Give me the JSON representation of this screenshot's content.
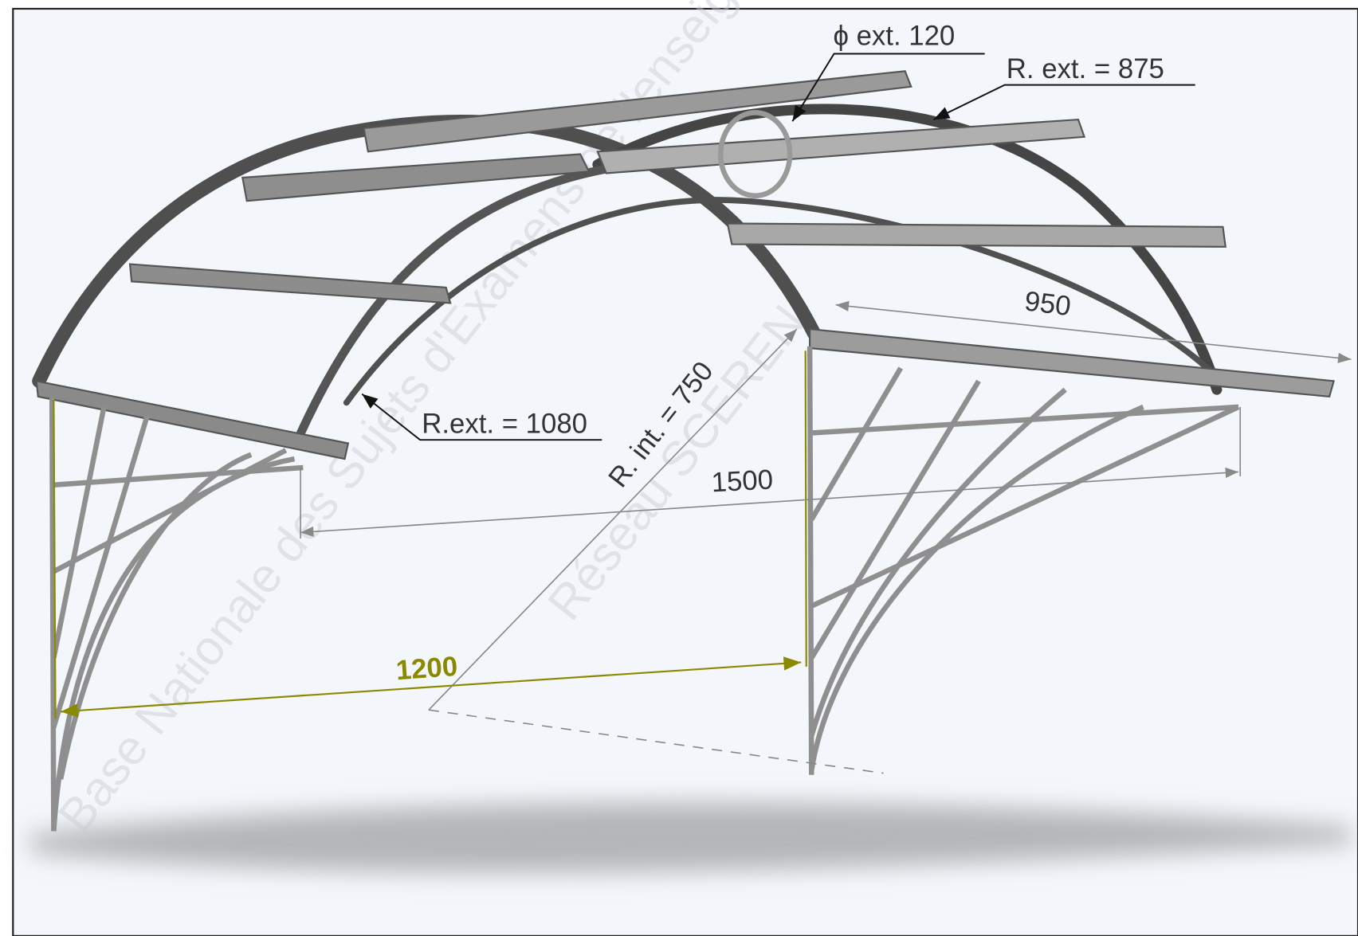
{
  "drawing": {
    "dimensions": [
      {
        "label": "ϕ ext. 120"
      },
      {
        "label": "R. ext. = 875"
      },
      {
        "label": "950"
      },
      {
        "label": "R.ext. = 1080"
      },
      {
        "label": "1500"
      },
      {
        "label": "R. int. = 750"
      },
      {
        "label": "1200"
      }
    ],
    "watermark": [
      "Base Nationale des Sujets d'Examens de l'enseignement professionnel",
      "Réseau SCEREN"
    ]
  }
}
